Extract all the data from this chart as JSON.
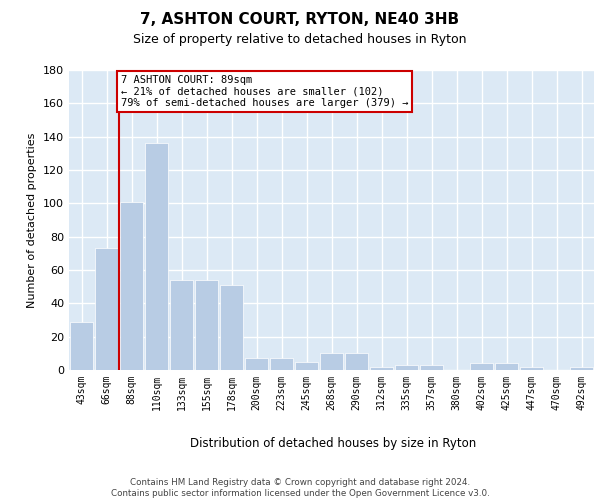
{
  "title": "7, ASHTON COURT, RYTON, NE40 3HB",
  "subtitle": "Size of property relative to detached houses in Ryton",
  "xlabel": "Distribution of detached houses by size in Ryton",
  "ylabel": "Number of detached properties",
  "categories": [
    "43sqm",
    "66sqm",
    "88sqm",
    "110sqm",
    "133sqm",
    "155sqm",
    "178sqm",
    "200sqm",
    "223sqm",
    "245sqm",
    "268sqm",
    "290sqm",
    "312sqm",
    "335sqm",
    "357sqm",
    "380sqm",
    "402sqm",
    "425sqm",
    "447sqm",
    "470sqm",
    "492sqm"
  ],
  "values": [
    29,
    73,
    101,
    136,
    54,
    54,
    51,
    7,
    7,
    5,
    10,
    10,
    2,
    3,
    3,
    0,
    4,
    4,
    2,
    0,
    2
  ],
  "bar_color": "#b8cce4",
  "bar_edgecolor": "white",
  "grid_color": "#ffffff",
  "bg_color": "#dce9f5",
  "annotation_box_color": "#cc0000",
  "property_bin_index": 2,
  "annotation_text_line1": "7 ASHTON COURT: 89sqm",
  "annotation_text_line2": "← 21% of detached houses are smaller (102)",
  "annotation_text_line3": "79% of semi-detached houses are larger (379) →",
  "ylim": [
    0,
    180
  ],
  "yticks": [
    0,
    20,
    40,
    60,
    80,
    100,
    120,
    140,
    160,
    180
  ],
  "footer_line1": "Contains HM Land Registry data © Crown copyright and database right 2024.",
  "footer_line2": "Contains public sector information licensed under the Open Government Licence v3.0."
}
